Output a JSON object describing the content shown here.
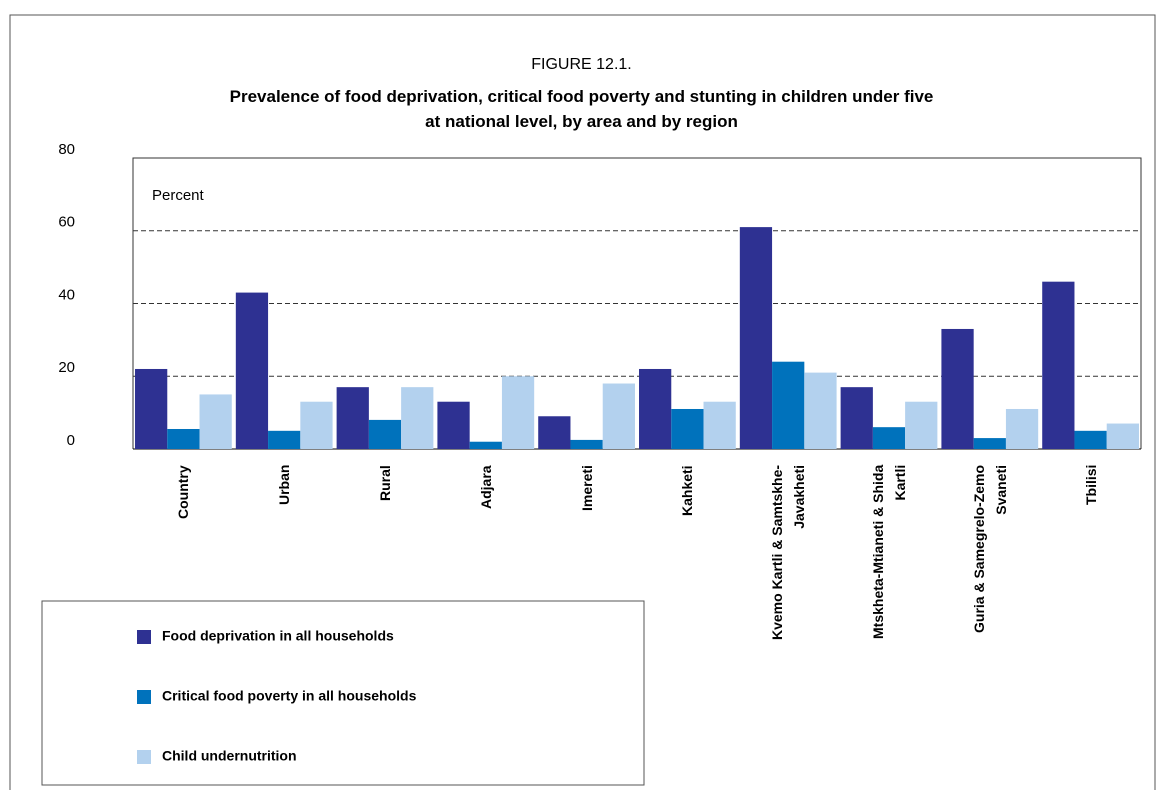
{
  "chart_data": {
    "type": "bar",
    "title": "FIGURE 12.1.",
    "subtitle": "Prevalence of food deprivation, critical food poverty and stunting in children under five\nat national level, by area and by region",
    "y_label": "Percent",
    "categories": [
      "Country",
      "Urban",
      "Rural",
      "Adjara",
      "Imereti",
      "Kahketi",
      "Kvemo Kartli & Samtskhe-\nJavakheti",
      "Mtskheta-Mtianeti & Shida\nKartli",
      "Guria & Samegrelo-Zemo\nSvaneti",
      "Tbilisi"
    ],
    "series": [
      {
        "name": "Food deprivation in all households",
        "color": "#2e3192",
        "values": [
          22,
          43,
          17,
          13,
          9,
          22,
          61,
          17,
          33,
          46
        ]
      },
      {
        "name": "Critical food poverty in all households",
        "color": "#0072bc",
        "values": [
          5.5,
          5,
          8,
          2,
          2.5,
          11,
          24,
          6,
          3,
          5
        ]
      },
      {
        "name": "Child undernutrition",
        "color": "#b3d1ee",
        "values": [
          15,
          13,
          17,
          20,
          18,
          13,
          21,
          13,
          11,
          7
        ]
      }
    ],
    "ylim": [
      0,
      80
    ],
    "yticks": [
      0,
      20,
      40,
      60,
      80
    ],
    "grid": true
  }
}
